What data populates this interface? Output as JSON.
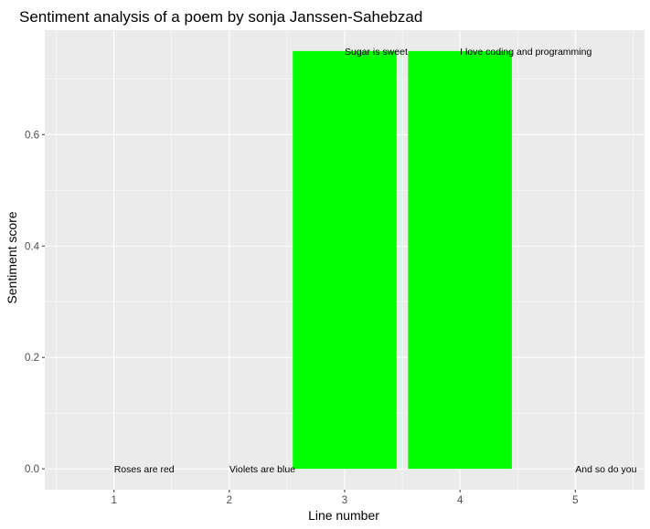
{
  "chart_data": {
    "type": "bar",
    "title": "Sentiment analysis of a poem by sonja Janssen-Sahebzad",
    "xlabel": "Line number",
    "ylabel": "Sentiment score",
    "x": [
      1,
      2,
      3,
      4,
      5
    ],
    "values": [
      0,
      0,
      0.75,
      0.75,
      0
    ],
    "labels": [
      "Roses are red",
      "Violets are blue",
      "Sugar is sweet",
      "I love coding and programming",
      "And so do you"
    ],
    "x_ticks": [
      "1",
      "2",
      "3",
      "4",
      "5"
    ],
    "y_ticks": [
      "0.0",
      "0.2",
      "0.4",
      "0.6"
    ],
    "xlim": [
      0.4,
      5.6
    ],
    "ylim": [
      -0.0375,
      0.7875
    ],
    "bar_color": "#00ff00",
    "panel_background": "#ebebeb",
    "grid_color": "#ffffff",
    "grid": true,
    "legend": false
  }
}
